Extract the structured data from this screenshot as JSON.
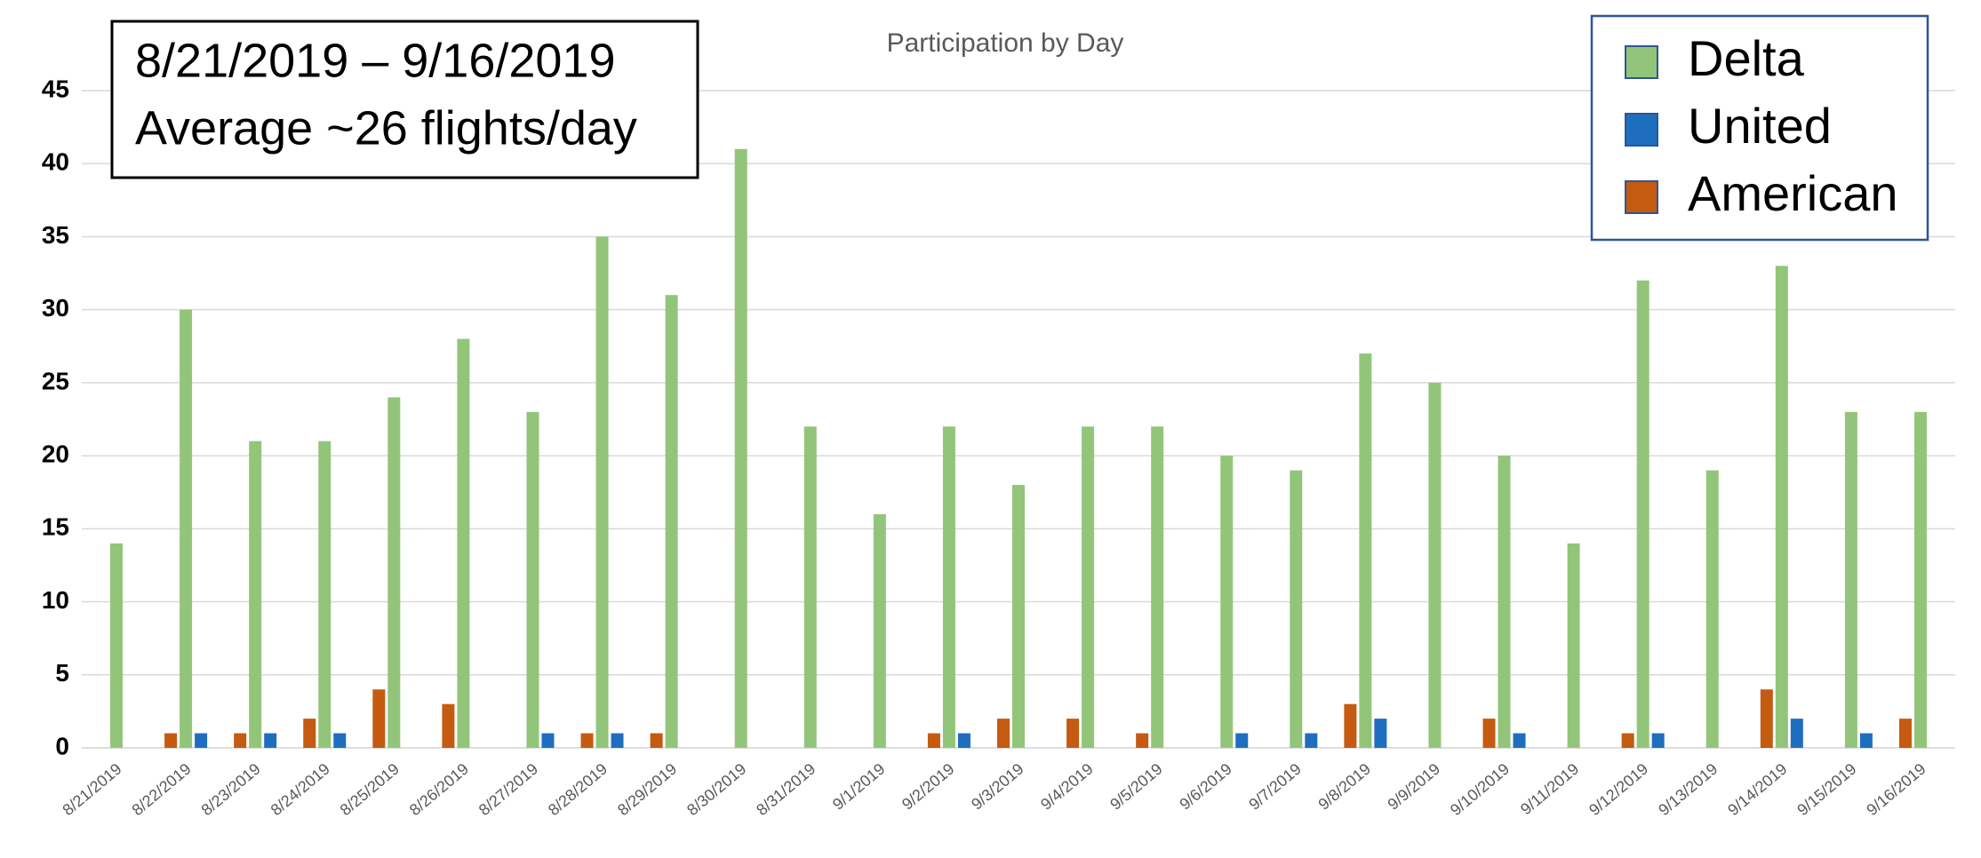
{
  "chart_data": {
    "type": "bar",
    "title": "Participation by Day",
    "annotations": [
      "8/21/2019 – 9/16/2019",
      "Average ~26 flights/day"
    ],
    "categories": [
      "8/21/2019",
      "8/22/2019",
      "8/23/2019",
      "8/24/2019",
      "8/25/2019",
      "8/26/2019",
      "8/27/2019",
      "8/28/2019",
      "8/29/2019",
      "8/30/2019",
      "8/31/2019",
      "9/1/2019",
      "9/2/2019",
      "9/3/2019",
      "9/4/2019",
      "9/5/2019",
      "9/6/2019",
      "9/7/2019",
      "9/8/2019",
      "9/9/2019",
      "9/10/2019",
      "9/11/2019",
      "9/12/2019",
      "9/13/2019",
      "9/14/2019",
      "9/15/2019",
      "9/16/2019"
    ],
    "series": [
      {
        "name": "Delta",
        "color": "#92c57a",
        "values": [
          14,
          30,
          21,
          21,
          24,
          28,
          23,
          35,
          31,
          41,
          22,
          16,
          22,
          18,
          22,
          22,
          20,
          19,
          27,
          25,
          20,
          14,
          32,
          19,
          33,
          23,
          23
        ]
      },
      {
        "name": "United",
        "color": "#1e6ec0",
        "values": [
          0,
          1,
          1,
          1,
          0,
          0,
          1,
          1,
          0,
          0,
          0,
          0,
          1,
          0,
          0,
          0,
          1,
          1,
          2,
          0,
          1,
          0,
          1,
          0,
          2,
          1,
          0
        ]
      },
      {
        "name": "American",
        "color": "#c55a11",
        "values": [
          0,
          1,
          1,
          2,
          4,
          3,
          0,
          1,
          1,
          0,
          0,
          0,
          1,
          2,
          2,
          1,
          0,
          0,
          3,
          0,
          2,
          0,
          1,
          0,
          4,
          0,
          2
        ]
      }
    ],
    "ylim": [
      0,
      45
    ],
    "yticks": [
      0,
      5,
      10,
      15,
      20,
      25,
      30,
      35,
      40,
      45
    ],
    "grid": true,
    "legend": "top-right"
  }
}
